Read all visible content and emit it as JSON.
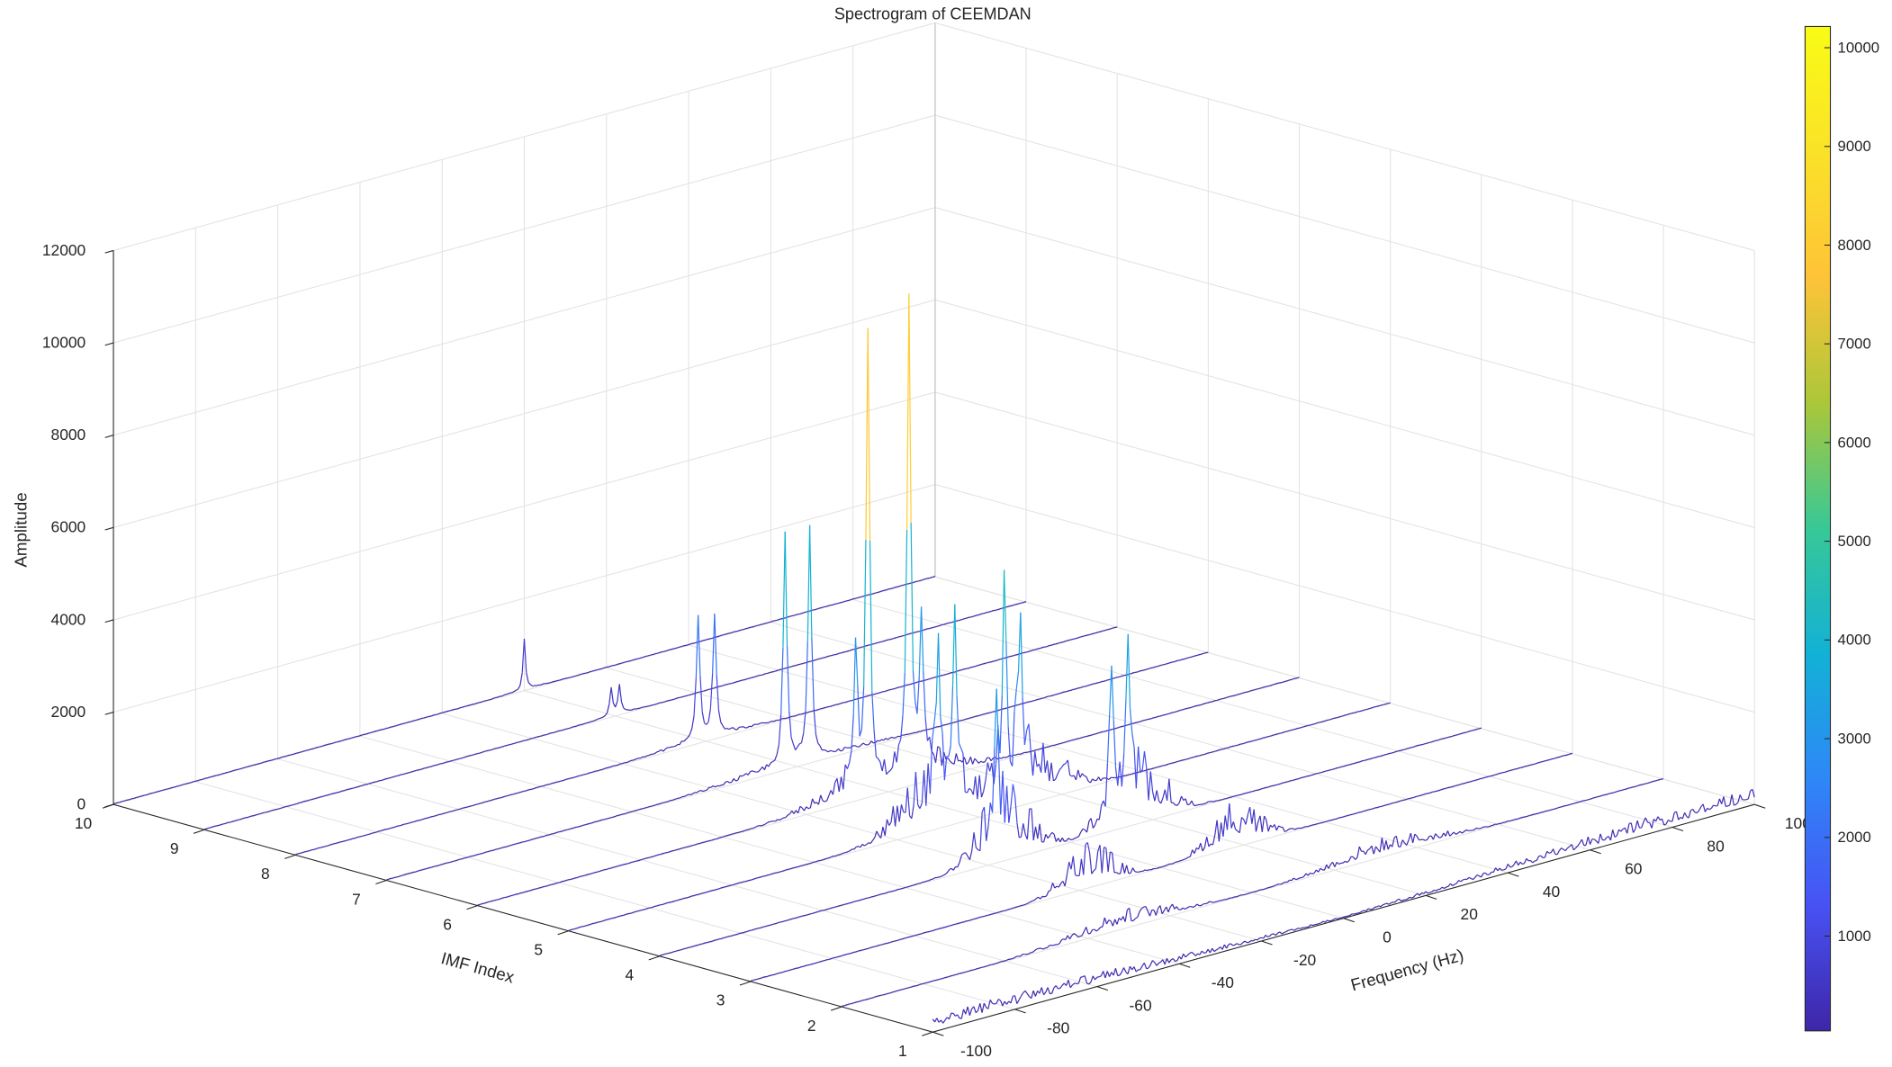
{
  "chart_data": {
    "type": "waterfall",
    "title": "Spectrogram of CEEMDAN",
    "xlabel": "Frequency (Hz)",
    "ylabel": "IMF Index",
    "zlabel": "Amplitude",
    "xlim": [
      -100,
      100
    ],
    "ylim": [
      1,
      10
    ],
    "zlim": [
      0,
      12000
    ],
    "xticks": [
      -100,
      -80,
      -60,
      -40,
      -20,
      0,
      20,
      40,
      60,
      80,
      100
    ],
    "yticks": [
      1,
      2,
      3,
      4,
      5,
      6,
      7,
      8,
      9,
      10
    ],
    "zticks": [
      0,
      2000,
      4000,
      6000,
      8000,
      10000,
      12000
    ],
    "grid": true,
    "colorbar": {
      "colormap": "parula",
      "clim": [
        40,
        10215
      ],
      "ticks": [
        1000,
        2000,
        3000,
        4000,
        5000,
        6000,
        7000,
        8000,
        9000,
        10000
      ],
      "placement": "right"
    },
    "series": [
      {
        "imf": 10,
        "peaks": [
          {
            "freq": 0,
            "amp": 1100
          }
        ],
        "peak_width_hz": 0.35,
        "noise": {
          "center_hz": 0,
          "spread_hz": 6,
          "amp": 30
        }
      },
      {
        "imf": 9,
        "peaks": [
          {
            "freq": -1,
            "amp": 600
          },
          {
            "freq": 1,
            "amp": 600
          }
        ],
        "peak_width_hz": 0.4,
        "noise": {
          "center_hz": 0,
          "spread_hz": 6,
          "amp": 30
        }
      },
      {
        "imf": 8,
        "peaks": [
          {
            "freq": -2,
            "amp": 2700
          },
          {
            "freq": 2,
            "amp": 2600
          }
        ],
        "peak_width_hz": 0.5,
        "noise": {
          "center_hz": 0,
          "spread_hz": 14,
          "amp": 120
        }
      },
      {
        "imf": 7,
        "peaks": [
          {
            "freq": -3,
            "amp": 5000
          },
          {
            "freq": 3,
            "amp": 5000
          }
        ],
        "peak_width_hz": 0.5,
        "noise": {
          "center_hz": 0,
          "spread_hz": 20,
          "amp": 200
        }
      },
      {
        "imf": 6,
        "peaks": [
          {
            "freq": -5,
            "amp": 9800
          },
          {
            "freq": 5,
            "amp": 10100
          },
          {
            "freq": -8,
            "amp": 2900
          },
          {
            "freq": 8,
            "amp": 3200
          }
        ],
        "peak_width_hz": 0.5,
        "noise": {
          "center_hz": 6,
          "spread_hz": 14,
          "amp": 700
        }
      },
      {
        "imf": 5,
        "peaks": [
          {
            "freq": -10,
            "amp": 3700
          },
          {
            "freq": -6,
            "amp": 3900
          },
          {
            "freq": 6,
            "amp": 4000
          },
          {
            "freq": 10,
            "amp": 3500
          }
        ],
        "peak_width_hz": 0.5,
        "noise": {
          "center_hz": 10,
          "spread_hz": 12,
          "amp": 1800
        }
      },
      {
        "imf": 4,
        "peaks": [
          {
            "freq": -18,
            "amp": 2600
          },
          {
            "freq": 10,
            "amp": 3100
          },
          {
            "freq": 14,
            "amp": 3000
          }
        ],
        "peak_width_hz": 0.5,
        "noise": {
          "center_hz": 16,
          "spread_hz": 9,
          "amp": 1700
        }
      },
      {
        "imf": 3,
        "peaks": [],
        "peak_width_hz": 0.5,
        "noise": {
          "center_hz": 18,
          "spread_hz": 8,
          "amp": 1100
        }
      },
      {
        "imf": 2,
        "peaks": [],
        "peak_width_hz": 0.5,
        "noise": {
          "center_hz": 32,
          "spread_hz": 16,
          "amp": 420
        }
      },
      {
        "imf": 1,
        "peaks": [],
        "peak_width_hz": 0.5,
        "noise": {
          "center_hz": 80,
          "spread_hz": 55,
          "amp": 300
        }
      }
    ]
  }
}
